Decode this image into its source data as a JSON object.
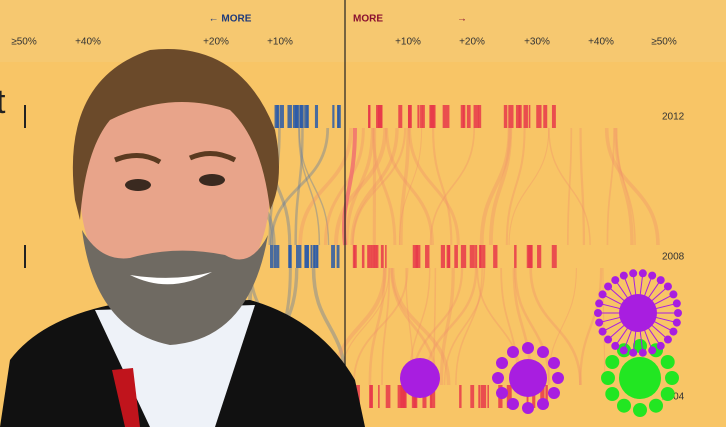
{
  "header": {
    "left_label": "← MORE",
    "right_label": "MORE",
    "arrow": "→"
  },
  "axis": {
    "left_ticks": [
      "≥50%",
      "+40%",
      "+20%",
      "+10%"
    ],
    "right_ticks": [
      "+10%",
      "+20%",
      "+30%",
      "+40%",
      "≥50%"
    ]
  },
  "years": [
    "2012",
    "2008",
    "2004"
  ],
  "edge_text": "t"
}
